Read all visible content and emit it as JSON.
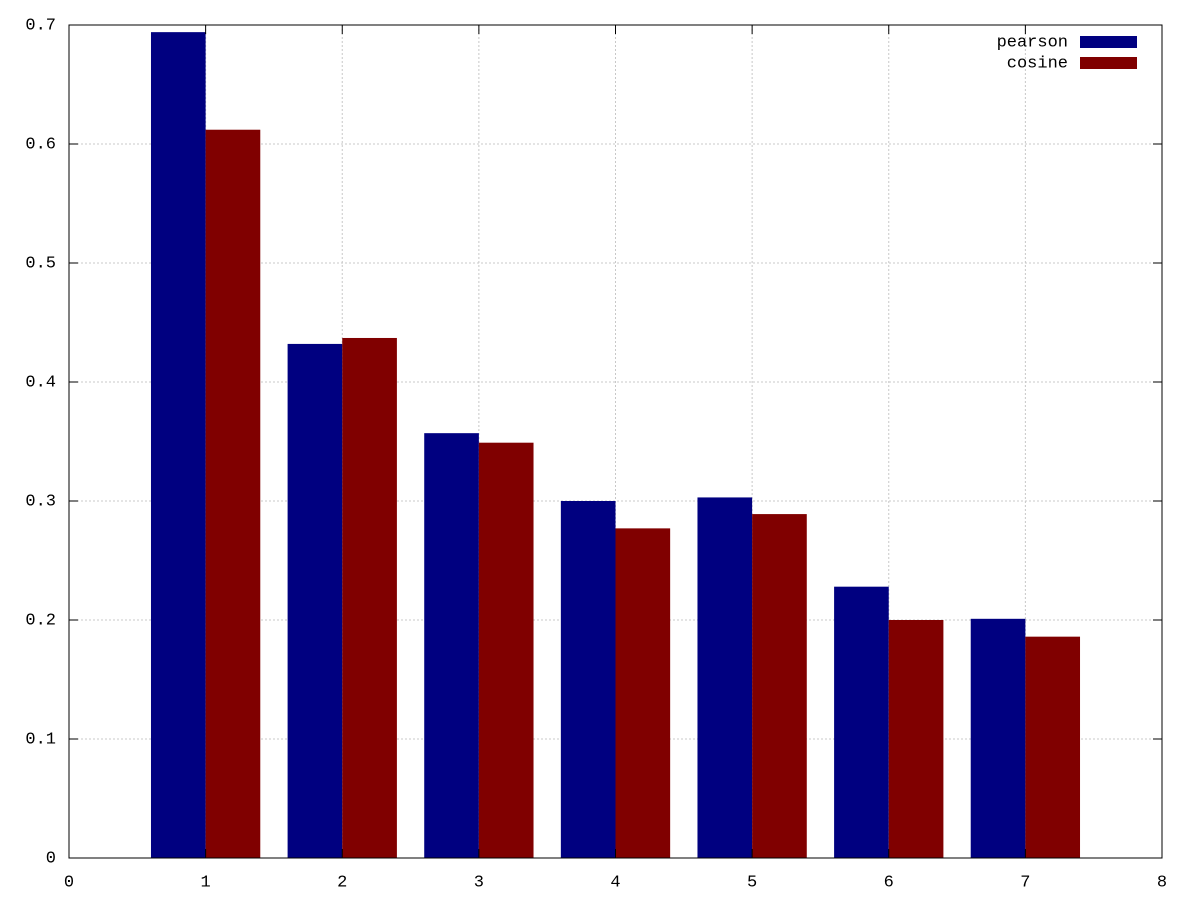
{
  "chart_data": {
    "type": "bar",
    "x": [
      1,
      2,
      3,
      4,
      5,
      6,
      7
    ],
    "series": [
      {
        "name": "pearson",
        "color": "#000080",
        "values": [
          0.694,
          0.432,
          0.357,
          0.3,
          0.303,
          0.228,
          0.201
        ]
      },
      {
        "name": "cosine",
        "color": "#800000",
        "values": [
          0.612,
          0.437,
          0.349,
          0.277,
          0.289,
          0.2,
          0.186
        ]
      }
    ],
    "xlim": [
      0,
      8
    ],
    "xticks": [
      0,
      1,
      2,
      3,
      4,
      5,
      6,
      7,
      8
    ],
    "ylim": [
      0,
      0.7
    ],
    "yticks": [
      0,
      0.1,
      0.2,
      0.3,
      0.4,
      0.5,
      0.6,
      0.7
    ],
    "grid": true,
    "legend": "top-right"
  }
}
